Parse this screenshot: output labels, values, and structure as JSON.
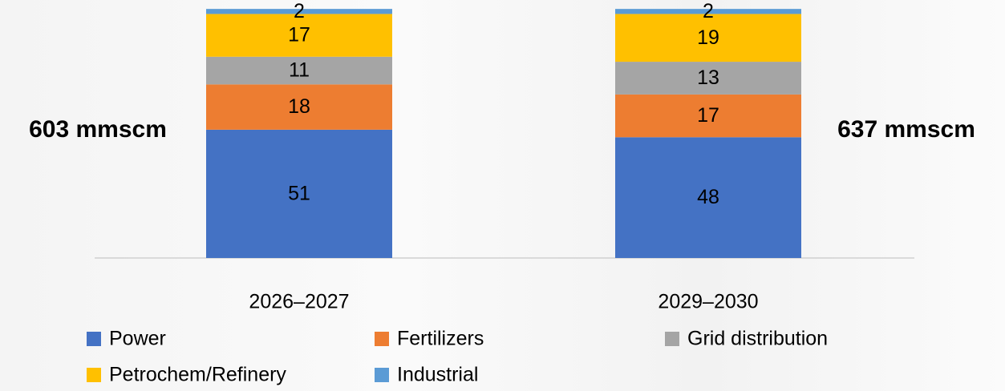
{
  "chart_data": {
    "type": "stacked_bar",
    "categories": [
      "2026–2027",
      "2029–2030"
    ],
    "series": [
      {
        "name": "Power",
        "color": "#4472c4",
        "values": [
          51,
          48
        ]
      },
      {
        "name": "Fertilizers",
        "color": "#ed7d31",
        "values": [
          18,
          17
        ]
      },
      {
        "name": "Grid distribution",
        "color": "#a5a5a5",
        "values": [
          11,
          13
        ]
      },
      {
        "name": "Petrochem/Refinery",
        "color": "#ffc000",
        "values": [
          17,
          19
        ]
      },
      {
        "name": "Industrial",
        "color": "#5b9bd5",
        "values": [
          2,
          2
        ]
      }
    ],
    "ylim": [
      0,
      100
    ],
    "annotations": [
      "603 mmscm",
      "637 mmscm"
    ]
  }
}
